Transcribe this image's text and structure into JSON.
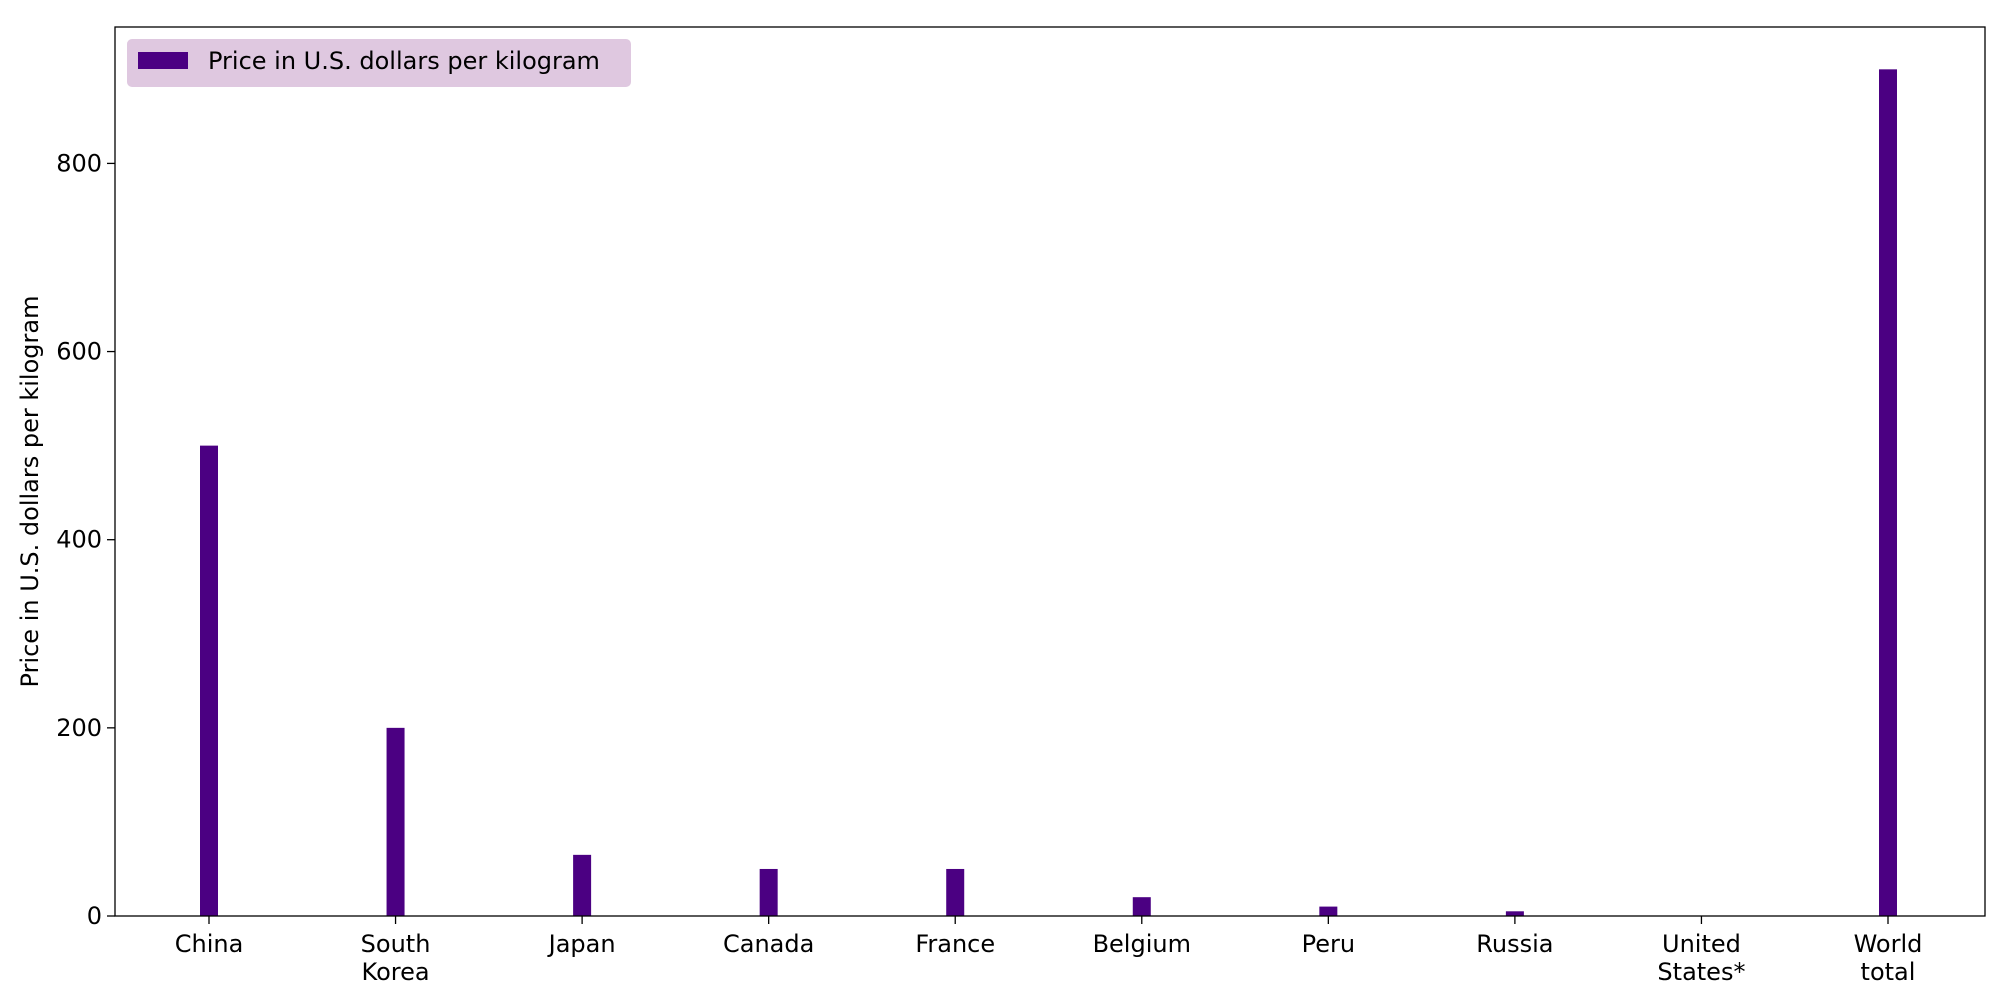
{
  "chart_data": {
    "type": "bar",
    "categories": [
      [
        "China"
      ],
      [
        "South",
        "Korea"
      ],
      [
        "Japan"
      ],
      [
        "Canada"
      ],
      [
        "France"
      ],
      [
        "Belgium"
      ],
      [
        "Peru"
      ],
      [
        "Russia"
      ],
      [
        "United",
        "States*"
      ],
      [
        "World",
        "total"
      ]
    ],
    "series": [
      {
        "name": "Price in U.S. dollars per kilogram",
        "values": [
          500,
          200,
          65,
          50,
          50,
          20,
          10,
          5,
          0,
          900
        ],
        "color": "#4b0082"
      }
    ],
    "xlabel": "",
    "ylabel": "Price in U.S. dollars per kilogram",
    "ylim": [
      0,
      945
    ],
    "yticks": [
      0,
      200,
      400,
      600,
      800
    ],
    "grid": false,
    "legend_position": "top-left",
    "legend_bg": "#dfc8e0"
  }
}
